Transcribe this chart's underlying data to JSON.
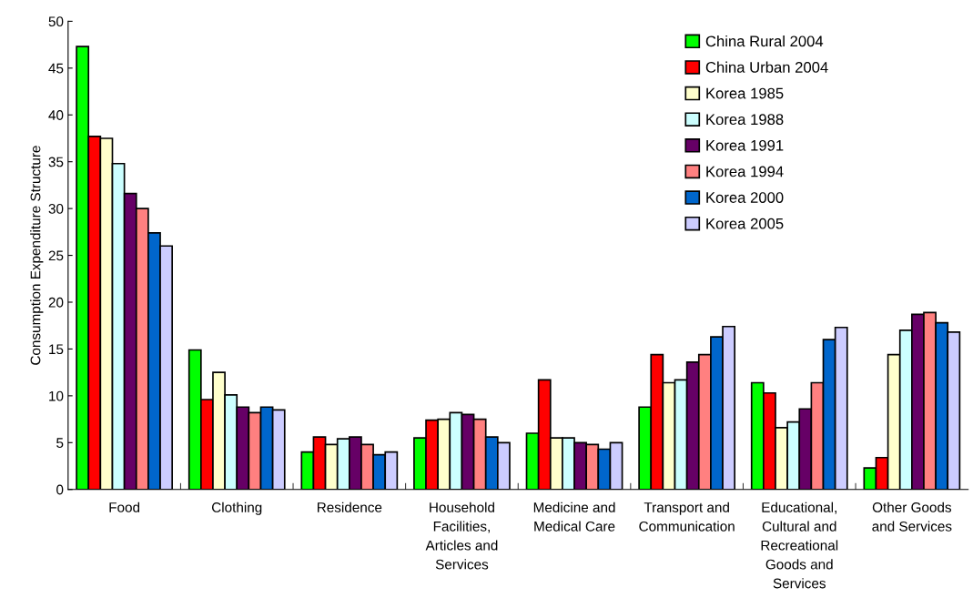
{
  "chart_data": {
    "type": "bar",
    "ylabel": "Consumption Expenditure Structure",
    "categories": [
      "Food",
      "Clothing",
      "Residence",
      "Household\nFacilities,\nArticles and\nServices",
      "Medicine and\nMedical Care",
      "Transport and\nCommunication",
      "Educational,\nCultural and\nRecreational\nGoods and\nServices",
      "Other Goods\nand Services"
    ],
    "series": [
      {
        "name": "China Rural 2004",
        "color": "#00ff00",
        "values": [
          47.3,
          14.9,
          4.0,
          5.5,
          6.0,
          8.8,
          11.4,
          2.3
        ]
      },
      {
        "name": "China Urban 2004",
        "color": "#ff0000",
        "values": [
          37.7,
          9.6,
          5.6,
          7.4,
          11.7,
          14.4,
          10.3,
          3.4
        ]
      },
      {
        "name": "Korea 1985",
        "color": "#ffffcc",
        "values": [
          37.5,
          12.5,
          4.8,
          7.5,
          5.5,
          11.4,
          6.6,
          14.4
        ]
      },
      {
        "name": "Korea 1988",
        "color": "#ccffff",
        "values": [
          34.8,
          10.1,
          5.4,
          8.2,
          5.5,
          11.7,
          7.2,
          17.0
        ]
      },
      {
        "name": "Korea 1991",
        "color": "#660066",
        "values": [
          31.6,
          8.8,
          5.6,
          8.0,
          5.0,
          13.6,
          8.6,
          18.7
        ]
      },
      {
        "name": "Korea 1994",
        "color": "#ff8080",
        "values": [
          30.0,
          8.2,
          4.8,
          7.5,
          4.8,
          14.4,
          11.4,
          18.9
        ]
      },
      {
        "name": "Korea 2000",
        "color": "#0066cc",
        "values": [
          27.4,
          8.8,
          3.7,
          5.6,
          4.3,
          16.3,
          16.0,
          17.8
        ]
      },
      {
        "name": "Korea 2005",
        "color": "#ccccff",
        "values": [
          26.0,
          8.5,
          4.0,
          5.0,
          5.0,
          17.4,
          17.3,
          16.8
        ]
      }
    ],
    "ylim": [
      0,
      50
    ],
    "yticks": [
      0,
      5,
      10,
      15,
      20,
      25,
      30,
      35,
      40,
      45,
      50
    ],
    "grid": false,
    "legend": "top right"
  }
}
